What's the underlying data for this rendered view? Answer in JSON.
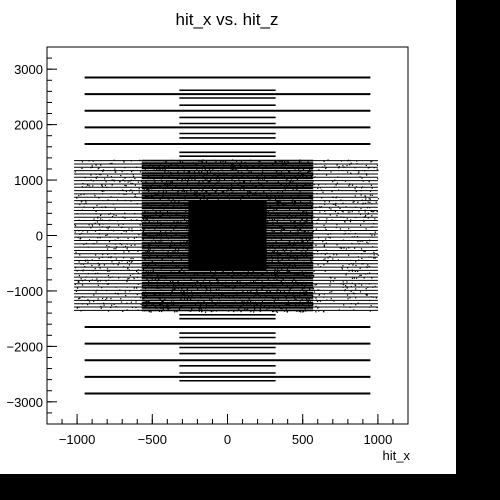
{
  "colors": {
    "frame_background": "#000000",
    "canvas_background": "#ffffff",
    "marker": "#000000",
    "axis": "#000000"
  },
  "chart_data": {
    "type": "scatter",
    "title": "hit_x vs. hit_z",
    "xlabel": "hit_x",
    "ylabel": "",
    "xlim": [
      -1200,
      1200
    ],
    "ylim": [
      -3400,
      3400
    ],
    "grid": false,
    "legend": false,
    "x_ticks": [
      -1000,
      -500,
      0,
      500,
      1000
    ],
    "x_tick_labels": [
      "−1000",
      "−500",
      "0",
      "500",
      "1000"
    ],
    "y_ticks": [
      -3000,
      -2000,
      -1000,
      0,
      1000,
      2000,
      3000
    ],
    "y_tick_labels": [
      "−3000",
      "−2000",
      "−1000",
      "0",
      "1000",
      "2000",
      "3000"
    ],
    "series": [
      {
        "components": [
          {
            "kind": "long_strips",
            "description_values": "horizontal bands of hits spanning x from -950 to 950",
            "x_range": [
              -950,
              950
            ],
            "z_values": [
              2850,
              2550,
              2250,
              1950,
              1650,
              -1650,
              -1950,
              -2250,
              -2550,
              -2850
            ]
          },
          {
            "kind": "short_strips",
            "x_range": [
              -320,
              320
            ],
            "z_values": [
              2620,
              2480,
              2350,
              2130,
              2020,
              1840,
              1760,
              1500,
              1430,
              -1430,
              -1500,
              -1760,
              -1840,
              -2020,
              -2130,
              -2350,
              -2480,
              -2620
            ]
          },
          {
            "kind": "outer_block",
            "x_range": [
              -1020,
              1000
            ],
            "z_range": [
              -1350,
              1350
            ],
            "row_spacing": 60
          },
          {
            "kind": "middle_block",
            "x_range": [
              -570,
              570
            ],
            "z_range": [
              -1350,
              1350
            ],
            "row_spacing": 45
          },
          {
            "kind": "inner_core",
            "x_range": [
              -260,
              260
            ],
            "z_range": [
              -620,
              620
            ]
          }
        ]
      }
    ]
  }
}
